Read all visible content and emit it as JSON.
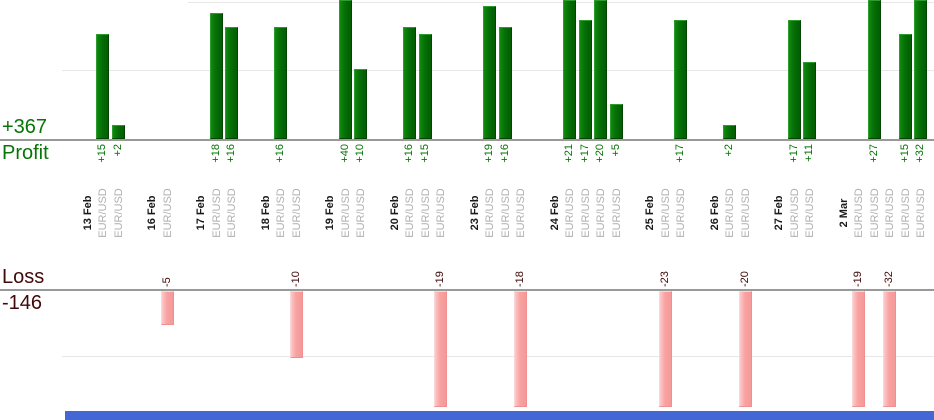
{
  "profit_section": {
    "total_label": "+367",
    "name_label": "Profit"
  },
  "loss_section": {
    "name_label": "Loss",
    "total_label": "-146"
  },
  "chart_data": {
    "type": "bar",
    "description": "Per-trade profit (green, above upper axis) and loss (pink, below lower axis) grouped by date",
    "groups": [
      {
        "date": "13 Feb",
        "trades": [
          {
            "symbol": "EUR/USD",
            "value": 15
          },
          {
            "symbol": "EUR/USD",
            "value": 2
          }
        ]
      },
      {
        "date": "16 Feb",
        "trades": [
          {
            "symbol": "EUR/USD",
            "value": -5
          }
        ]
      },
      {
        "date": "17 Feb",
        "trades": [
          {
            "symbol": "EUR/USD",
            "value": 18
          },
          {
            "symbol": "EUR/USD",
            "value": 16
          }
        ]
      },
      {
        "date": "18 Feb",
        "trades": [
          {
            "symbol": "EUR/USD",
            "value": 16
          },
          {
            "symbol": "EUR/USD",
            "value": -10
          }
        ]
      },
      {
        "date": "19 Feb",
        "trades": [
          {
            "symbol": "EUR/USD",
            "value": 40
          },
          {
            "symbol": "EUR/USD",
            "value": 10
          }
        ]
      },
      {
        "date": "20 Feb",
        "trades": [
          {
            "symbol": "EUR/USD",
            "value": 16
          },
          {
            "symbol": "EUR/USD",
            "value": 15
          },
          {
            "symbol": "EUR/USD",
            "value": -19
          }
        ]
      },
      {
        "date": "23 Feb",
        "trades": [
          {
            "symbol": "EUR/USD",
            "value": 19
          },
          {
            "symbol": "EUR/USD",
            "value": 16
          },
          {
            "symbol": "EUR/USD",
            "value": -18
          }
        ]
      },
      {
        "date": "24 Feb",
        "trades": [
          {
            "symbol": "EUR/USD",
            "value": 21
          },
          {
            "symbol": "EUR/USD",
            "value": 17
          },
          {
            "symbol": "EUR/USD",
            "value": 20
          },
          {
            "symbol": "EUR/USD",
            "value": 5
          }
        ]
      },
      {
        "date": "25 Feb",
        "trades": [
          {
            "symbol": "EUR/USD",
            "value": -23
          },
          {
            "symbol": "EUR/USD",
            "value": 17
          }
        ]
      },
      {
        "date": "26 Feb",
        "trades": [
          {
            "symbol": "EUR/USD",
            "value": 2
          },
          {
            "symbol": "EUR/USD",
            "value": -20
          }
        ]
      },
      {
        "date": "27 Feb",
        "trades": [
          {
            "symbol": "EUR/USD",
            "value": 17
          },
          {
            "symbol": "EUR/USD",
            "value": 11
          }
        ]
      },
      {
        "date": "2 Mar",
        "trades": [
          {
            "symbol": "EUR/USD",
            "value": -19
          },
          {
            "symbol": "EUR/USD",
            "value": 27
          },
          {
            "symbol": "EUR/USD",
            "value": -32
          },
          {
            "symbol": "EUR/USD",
            "value": 15
          },
          {
            "symbol": "EUR/USD",
            "value": 32
          }
        ]
      }
    ],
    "profit_total": 367,
    "loss_total": -146,
    "profit_gridlines": [
      10,
      20
    ],
    "loss_gridlines": [
      -10
    ],
    "value_prefix_positive": "+",
    "colors": {
      "profit_text": "#077507",
      "loss_text": "#400a0a",
      "profit_bar": "#067106",
      "loss_bar": "#f8a2a2",
      "axis": "#999999",
      "gridline": "#e7e7e7",
      "symbol_text": "#b0b0b0",
      "date_text": "#1a1a1a",
      "bottom_strip": "#4368d6"
    }
  }
}
